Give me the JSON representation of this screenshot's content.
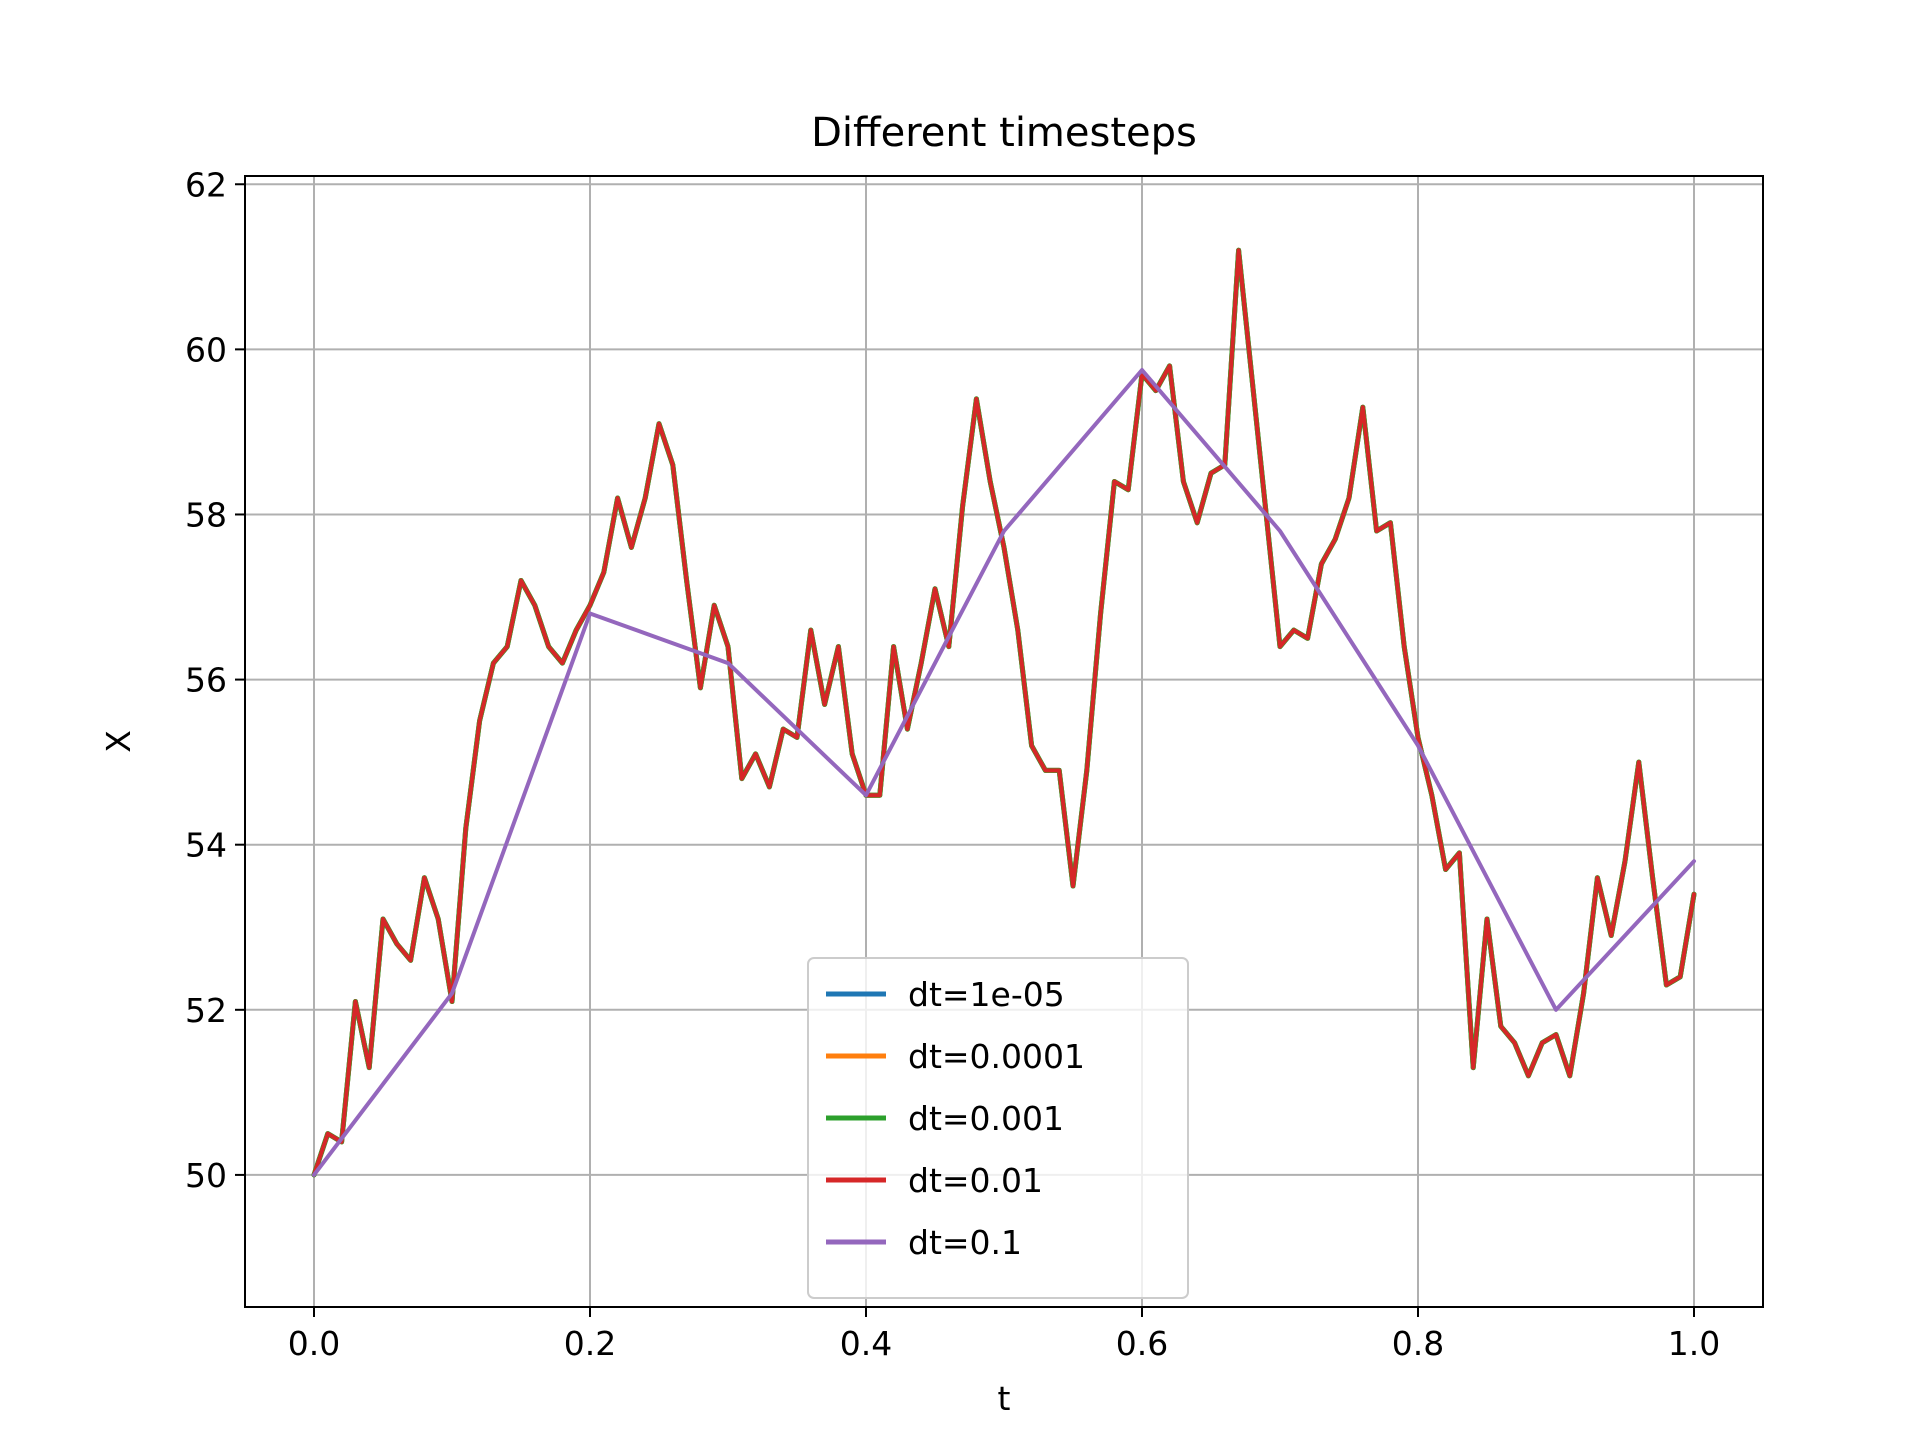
{
  "chart_data": {
    "type": "line",
    "title": "Different timesteps",
    "xlabel": "t",
    "ylabel": "X",
    "xlim": [
      -0.05,
      1.05
    ],
    "ylim": [
      48.4,
      62.1
    ],
    "xticks": [
      0.0,
      0.2,
      0.4,
      0.6,
      0.8,
      1.0
    ],
    "xtick_labels": [
      "0.0",
      "0.2",
      "0.4",
      "0.6",
      "0.8",
      "1.0"
    ],
    "yticks": [
      50,
      52,
      54,
      56,
      58,
      60,
      62
    ],
    "ytick_labels": [
      "50",
      "52",
      "54",
      "56",
      "58",
      "60",
      "62"
    ],
    "grid": true,
    "legend_position": "lower center",
    "series": [
      {
        "name": "dt=1e-05",
        "color": "#1f77b4",
        "x": [
          0.0,
          0.01,
          0.02,
          0.03,
          0.04,
          0.05,
          0.06,
          0.07,
          0.08,
          0.09,
          0.1,
          0.11,
          0.12,
          0.13,
          0.14,
          0.15,
          0.16,
          0.17,
          0.18,
          0.19,
          0.2,
          0.21,
          0.22,
          0.23,
          0.24,
          0.25,
          0.26,
          0.27,
          0.28,
          0.29,
          0.3,
          0.31,
          0.32,
          0.33,
          0.34,
          0.35,
          0.36,
          0.37,
          0.38,
          0.39,
          0.4,
          0.41,
          0.42,
          0.43,
          0.44,
          0.45,
          0.46,
          0.47,
          0.48,
          0.49,
          0.5,
          0.51,
          0.52,
          0.53,
          0.54,
          0.55,
          0.56,
          0.57,
          0.58,
          0.59,
          0.6,
          0.61,
          0.62,
          0.63,
          0.64,
          0.65,
          0.66,
          0.67,
          0.68,
          0.69,
          0.7,
          0.71,
          0.72,
          0.73,
          0.74,
          0.75,
          0.76,
          0.77,
          0.78,
          0.79,
          0.8,
          0.81,
          0.82,
          0.83,
          0.84,
          0.85,
          0.86,
          0.87,
          0.88,
          0.89,
          0.9,
          0.91,
          0.92,
          0.93,
          0.94,
          0.95,
          0.96,
          0.97,
          0.98,
          0.99,
          1.0
        ],
        "y": [
          50.0,
          50.5,
          50.4,
          52.1,
          51.3,
          53.1,
          52.8,
          52.6,
          53.6,
          53.1,
          52.1,
          54.2,
          55.5,
          56.2,
          56.4,
          57.2,
          56.9,
          56.4,
          56.2,
          56.6,
          56.9,
          57.3,
          58.2,
          57.6,
          58.2,
          59.1,
          58.6,
          57.2,
          55.9,
          56.9,
          56.4,
          54.8,
          55.1,
          54.7,
          55.4,
          55.3,
          56.6,
          55.7,
          56.4,
          55.1,
          54.6,
          54.6,
          56.4,
          55.4,
          56.2,
          57.1,
          56.4,
          58.1,
          59.4,
          58.4,
          57.6,
          56.6,
          55.2,
          54.9,
          54.9,
          53.5,
          54.9,
          56.8,
          58.4,
          58.3,
          59.7,
          59.5,
          59.8,
          58.4,
          57.9,
          58.5,
          58.6,
          61.2,
          59.6,
          58.0,
          56.4,
          56.6,
          56.5,
          57.4,
          57.7,
          58.2,
          59.3,
          57.8,
          57.9,
          56.4,
          55.3,
          54.6,
          53.7,
          53.9,
          51.3,
          53.1,
          51.8,
          51.6,
          51.2,
          51.6,
          51.7,
          51.2,
          52.2,
          53.6,
          52.9,
          53.8,
          55.0,
          53.6,
          52.3,
          52.4,
          53.4
        ]
      },
      {
        "name": "dt=0.0001",
        "color": "#ff7f0e",
        "x": [
          0.0,
          0.01,
          0.02,
          0.03,
          0.04,
          0.05,
          0.06,
          0.07,
          0.08,
          0.09,
          0.1,
          0.11,
          0.12,
          0.13,
          0.14,
          0.15,
          0.16,
          0.17,
          0.18,
          0.19,
          0.2,
          0.21,
          0.22,
          0.23,
          0.24,
          0.25,
          0.26,
          0.27,
          0.28,
          0.29,
          0.3,
          0.31,
          0.32,
          0.33,
          0.34,
          0.35,
          0.36,
          0.37,
          0.38,
          0.39,
          0.4,
          0.41,
          0.42,
          0.43,
          0.44,
          0.45,
          0.46,
          0.47,
          0.48,
          0.49,
          0.5,
          0.51,
          0.52,
          0.53,
          0.54,
          0.55,
          0.56,
          0.57,
          0.58,
          0.59,
          0.6,
          0.61,
          0.62,
          0.63,
          0.64,
          0.65,
          0.66,
          0.67,
          0.68,
          0.69,
          0.7,
          0.71,
          0.72,
          0.73,
          0.74,
          0.75,
          0.76,
          0.77,
          0.78,
          0.79,
          0.8,
          0.81,
          0.82,
          0.83,
          0.84,
          0.85,
          0.86,
          0.87,
          0.88,
          0.89,
          0.9,
          0.91,
          0.92,
          0.93,
          0.94,
          0.95,
          0.96,
          0.97,
          0.98,
          0.99,
          1.0
        ],
        "y": [
          50.0,
          50.5,
          50.4,
          52.1,
          51.3,
          53.1,
          52.8,
          52.6,
          53.6,
          53.1,
          52.1,
          54.2,
          55.5,
          56.2,
          56.4,
          57.2,
          56.9,
          56.4,
          56.2,
          56.6,
          56.9,
          57.3,
          58.2,
          57.6,
          58.2,
          59.1,
          58.6,
          57.2,
          55.9,
          56.9,
          56.4,
          54.8,
          55.1,
          54.7,
          55.4,
          55.3,
          56.6,
          55.7,
          56.4,
          55.1,
          54.6,
          54.6,
          56.4,
          55.4,
          56.2,
          57.1,
          56.4,
          58.1,
          59.4,
          58.4,
          57.6,
          56.6,
          55.2,
          54.9,
          54.9,
          53.5,
          54.9,
          56.8,
          58.4,
          58.3,
          59.7,
          59.5,
          59.8,
          58.4,
          57.9,
          58.5,
          58.6,
          61.2,
          59.6,
          58.0,
          56.4,
          56.6,
          56.5,
          57.4,
          57.7,
          58.2,
          59.3,
          57.8,
          57.9,
          56.4,
          55.3,
          54.6,
          53.7,
          53.9,
          51.3,
          53.1,
          51.8,
          51.6,
          51.2,
          51.6,
          51.7,
          51.2,
          52.2,
          53.6,
          52.9,
          53.8,
          55.0,
          53.6,
          52.3,
          52.4,
          53.4
        ]
      },
      {
        "name": "dt=0.001",
        "color": "#2ca02c",
        "x": [
          0.0,
          0.01,
          0.02,
          0.03,
          0.04,
          0.05,
          0.06,
          0.07,
          0.08,
          0.09,
          0.1,
          0.11,
          0.12,
          0.13,
          0.14,
          0.15,
          0.16,
          0.17,
          0.18,
          0.19,
          0.2,
          0.21,
          0.22,
          0.23,
          0.24,
          0.25,
          0.26,
          0.27,
          0.28,
          0.29,
          0.3,
          0.31,
          0.32,
          0.33,
          0.34,
          0.35,
          0.36,
          0.37,
          0.38,
          0.39,
          0.4,
          0.41,
          0.42,
          0.43,
          0.44,
          0.45,
          0.46,
          0.47,
          0.48,
          0.49,
          0.5,
          0.51,
          0.52,
          0.53,
          0.54,
          0.55,
          0.56,
          0.57,
          0.58,
          0.59,
          0.6,
          0.61,
          0.62,
          0.63,
          0.64,
          0.65,
          0.66,
          0.67,
          0.68,
          0.69,
          0.7,
          0.71,
          0.72,
          0.73,
          0.74,
          0.75,
          0.76,
          0.77,
          0.78,
          0.79,
          0.8,
          0.81,
          0.82,
          0.83,
          0.84,
          0.85,
          0.86,
          0.87,
          0.88,
          0.89,
          0.9,
          0.91,
          0.92,
          0.93,
          0.94,
          0.95,
          0.96,
          0.97,
          0.98,
          0.99,
          1.0
        ],
        "y": [
          50.0,
          50.5,
          50.4,
          52.1,
          51.3,
          53.1,
          52.8,
          52.6,
          53.6,
          53.1,
          52.1,
          54.2,
          55.5,
          56.2,
          56.4,
          57.2,
          56.9,
          56.4,
          56.2,
          56.6,
          56.9,
          57.3,
          58.2,
          57.6,
          58.2,
          59.1,
          58.6,
          57.2,
          55.9,
          56.9,
          56.4,
          54.8,
          55.1,
          54.7,
          55.4,
          55.3,
          56.6,
          55.7,
          56.4,
          55.1,
          54.6,
          54.6,
          56.4,
          55.4,
          56.2,
          57.1,
          56.4,
          58.1,
          59.4,
          58.4,
          57.6,
          56.6,
          55.2,
          54.9,
          54.9,
          53.5,
          54.9,
          56.8,
          58.4,
          58.3,
          59.7,
          59.5,
          59.8,
          58.4,
          57.9,
          58.5,
          58.6,
          61.2,
          59.6,
          58.0,
          56.4,
          56.6,
          56.5,
          57.4,
          57.7,
          58.2,
          59.3,
          57.8,
          57.9,
          56.4,
          55.3,
          54.6,
          53.7,
          53.9,
          51.3,
          53.1,
          51.8,
          51.6,
          51.2,
          51.6,
          51.7,
          51.2,
          52.2,
          53.6,
          52.9,
          53.8,
          55.0,
          53.6,
          52.3,
          52.4,
          53.4
        ]
      },
      {
        "name": "dt=0.01",
        "color": "#d62728",
        "x": [
          0.0,
          0.01,
          0.02,
          0.03,
          0.04,
          0.05,
          0.06,
          0.07,
          0.08,
          0.09,
          0.1,
          0.11,
          0.12,
          0.13,
          0.14,
          0.15,
          0.16,
          0.17,
          0.18,
          0.19,
          0.2,
          0.21,
          0.22,
          0.23,
          0.24,
          0.25,
          0.26,
          0.27,
          0.28,
          0.29,
          0.3,
          0.31,
          0.32,
          0.33,
          0.34,
          0.35,
          0.36,
          0.37,
          0.38,
          0.39,
          0.4,
          0.41,
          0.42,
          0.43,
          0.44,
          0.45,
          0.46,
          0.47,
          0.48,
          0.49,
          0.5,
          0.51,
          0.52,
          0.53,
          0.54,
          0.55,
          0.56,
          0.57,
          0.58,
          0.59,
          0.6,
          0.61,
          0.62,
          0.63,
          0.64,
          0.65,
          0.66,
          0.67,
          0.68,
          0.69,
          0.7,
          0.71,
          0.72,
          0.73,
          0.74,
          0.75,
          0.76,
          0.77,
          0.78,
          0.79,
          0.8,
          0.81,
          0.82,
          0.83,
          0.84,
          0.85,
          0.86,
          0.87,
          0.88,
          0.89,
          0.9,
          0.91,
          0.92,
          0.93,
          0.94,
          0.95,
          0.96,
          0.97,
          0.98,
          0.99,
          1.0
        ],
        "y": [
          50.0,
          50.5,
          50.4,
          52.1,
          51.3,
          53.1,
          52.8,
          52.6,
          53.6,
          53.1,
          52.1,
          54.2,
          55.5,
          56.2,
          56.4,
          57.2,
          56.9,
          56.4,
          56.2,
          56.6,
          56.9,
          57.3,
          58.2,
          57.6,
          58.2,
          59.1,
          58.6,
          57.2,
          55.9,
          56.9,
          56.4,
          54.8,
          55.1,
          54.7,
          55.4,
          55.3,
          56.6,
          55.7,
          56.4,
          55.1,
          54.6,
          54.6,
          56.4,
          55.4,
          56.2,
          57.1,
          56.4,
          58.1,
          59.4,
          58.4,
          57.6,
          56.6,
          55.2,
          54.9,
          54.9,
          53.5,
          54.9,
          56.8,
          58.4,
          58.3,
          59.7,
          59.5,
          59.8,
          58.4,
          57.9,
          58.5,
          58.6,
          61.2,
          59.6,
          58.0,
          56.4,
          56.6,
          56.5,
          57.4,
          57.7,
          58.2,
          59.3,
          57.8,
          57.9,
          56.4,
          55.3,
          54.6,
          53.7,
          53.9,
          51.3,
          53.1,
          51.8,
          51.6,
          51.2,
          51.6,
          51.7,
          51.2,
          52.2,
          53.6,
          52.9,
          53.8,
          55.0,
          53.6,
          52.3,
          52.4,
          53.4
        ]
      },
      {
        "name": "dt=0.1",
        "color": "#9467bd",
        "x": [
          0.0,
          0.1,
          0.2,
          0.3,
          0.4,
          0.5,
          0.6,
          0.7,
          0.8,
          0.9,
          1.0
        ],
        "y": [
          50.0,
          52.2,
          56.8,
          56.2,
          54.6,
          57.8,
          59.75,
          57.8,
          55.2,
          52.0,
          53.8
        ]
      }
    ]
  }
}
